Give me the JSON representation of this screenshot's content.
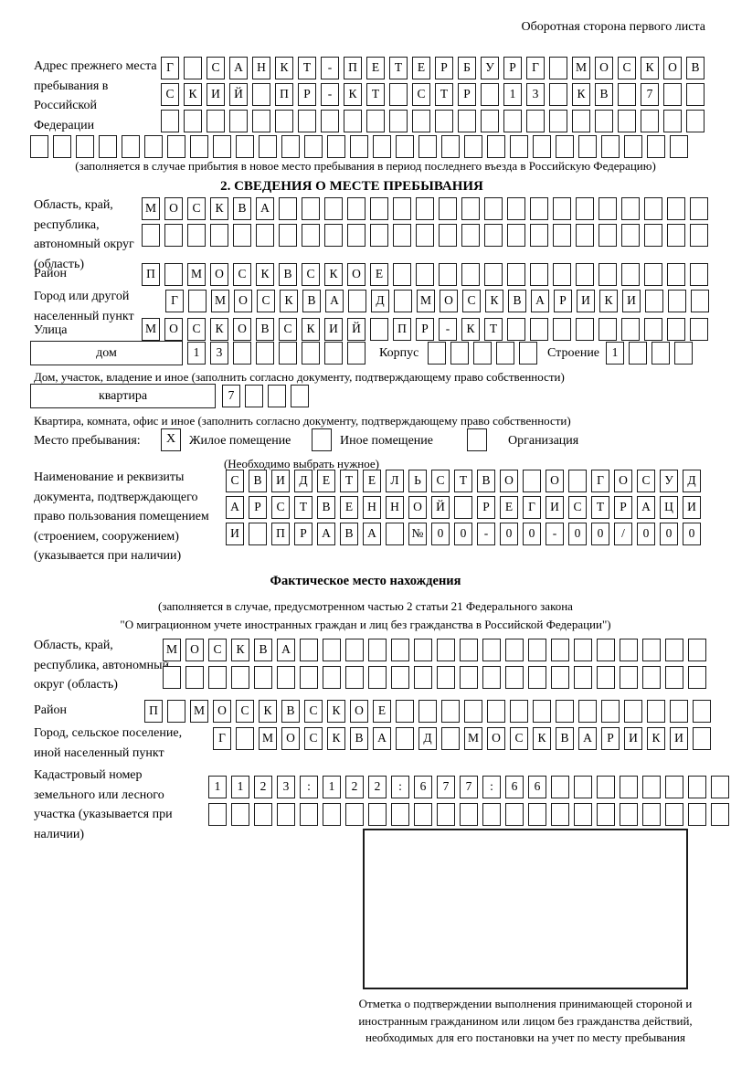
{
  "page_title": "Оборотная сторона первого листа",
  "prev_address": {
    "label": "Адрес прежнего места пребывания в Российской Федерации",
    "rows": [
      {
        "cells": "Г САНКТ-ПЕТЕРБУРГ МОСКОВ",
        "count": 24
      },
      {
        "cells": "СКИЙ ПР-КТ СТР 13 КВ 7",
        "count": 24
      },
      {
        "cells": "",
        "count": 24
      },
      {
        "cells": "",
        "count": 29
      }
    ],
    "note": "(заполняется в случае прибытия в новое место пребывания в период последнего въезда в Российскую Федерацию)"
  },
  "section2": {
    "heading": "2. СВЕДЕНИЯ О МЕСТЕ ПРЕБЫВАНИЯ",
    "oblast": {
      "label": "Область, край, республика, автономный округ (область)",
      "rows": [
        {
          "cells": "МОСКВА",
          "count": 25
        },
        {
          "cells": "",
          "count": 25
        }
      ]
    },
    "raion": {
      "label": "Район",
      "row": {
        "cells": "П МОСКВСКОЕ",
        "count": 25
      }
    },
    "gorod": {
      "label": "Город или другой населенный пункт",
      "row": {
        "cells": "Г МОСКВА Д МОСКВАРИКИ",
        "count": 24
      }
    },
    "ulitsa": {
      "label": "Улица",
      "row": {
        "cells": "МОСКОВСКИЙ ПР-КТ",
        "count": 25
      }
    },
    "dom": {
      "field_label": "дом",
      "row": {
        "cells": "13",
        "count": 8
      },
      "korpus_label": "Корпус",
      "korpus_row": {
        "cells": "",
        "count": 5
      },
      "stroenie_label": "Строение",
      "stroenie_row": {
        "cells": "1",
        "count": 4
      },
      "note": "Дом, участок, владение и иное (заполнить согласно документу, подтверждающему право собственности)"
    },
    "kvartira": {
      "field_label": "квартира",
      "row": {
        "cells": "7",
        "count": 4
      },
      "note": "Квартира, комната, офис и иное (заполнить согласно документу, подтверждающему право собственности)"
    },
    "mesto": {
      "label": "Место пребывания:",
      "options": [
        {
          "label": "Жилое помещение",
          "mark": "X"
        },
        {
          "label": "Иное помещение",
          "mark": ""
        },
        {
          "label": "Организация",
          "mark": ""
        }
      ],
      "note": "(Необходимо выбрать нужное)"
    },
    "doc": {
      "label": "Наименование и реквизиты документа, подтверждающего право пользования помещением (строением, сооружением) (указывается при наличии)",
      "rows": [
        {
          "cells": "СВИДЕТЕЛЬСТВО О ГОСУД",
          "count": 21
        },
        {
          "cells": "АРСТВЕННОЙ РЕГИСТРАЦИ",
          "count": 21
        },
        {
          "cells": "И ПРАВА №00-00-00/000",
          "count": 21
        }
      ]
    }
  },
  "fact": {
    "heading": "Фактическое место нахождения",
    "note1": "(заполняется в случае, предусмотренном частью 2 статьи 21 Федерального закона",
    "note2": "\"О миграционном учете иностранных граждан и лиц без гражданства в Российской Федерации\")",
    "oblast": {
      "label": "Область, край, республика, автономный округ (область)",
      "rows": [
        {
          "cells": "МОСКВА",
          "count": 24
        },
        {
          "cells": "",
          "count": 24
        }
      ]
    },
    "raion": {
      "label": "Район",
      "row": {
        "cells": "П МОСКВСКОЕ",
        "count": 25
      }
    },
    "gorod": {
      "label": "Город, сельское поселение, иной населенный пункт",
      "row": {
        "cells": "Г МОСКВА Д МОСКВАРИКИ",
        "count": 22
      }
    },
    "kadastr": {
      "label": "Кадастровый номер земельного или лесного участка (указывается при наличии)",
      "rows": [
        {
          "cells": "1123:122:677:66",
          "count": 23
        },
        {
          "cells": "",
          "count": 23
        }
      ]
    },
    "stamp_caption": "Отметка о подтверждении выполнения принимающей стороной и иностранным гражданином или лицом без гражданства действий, необходимых для его постановки на учет по месту пребывания"
  }
}
